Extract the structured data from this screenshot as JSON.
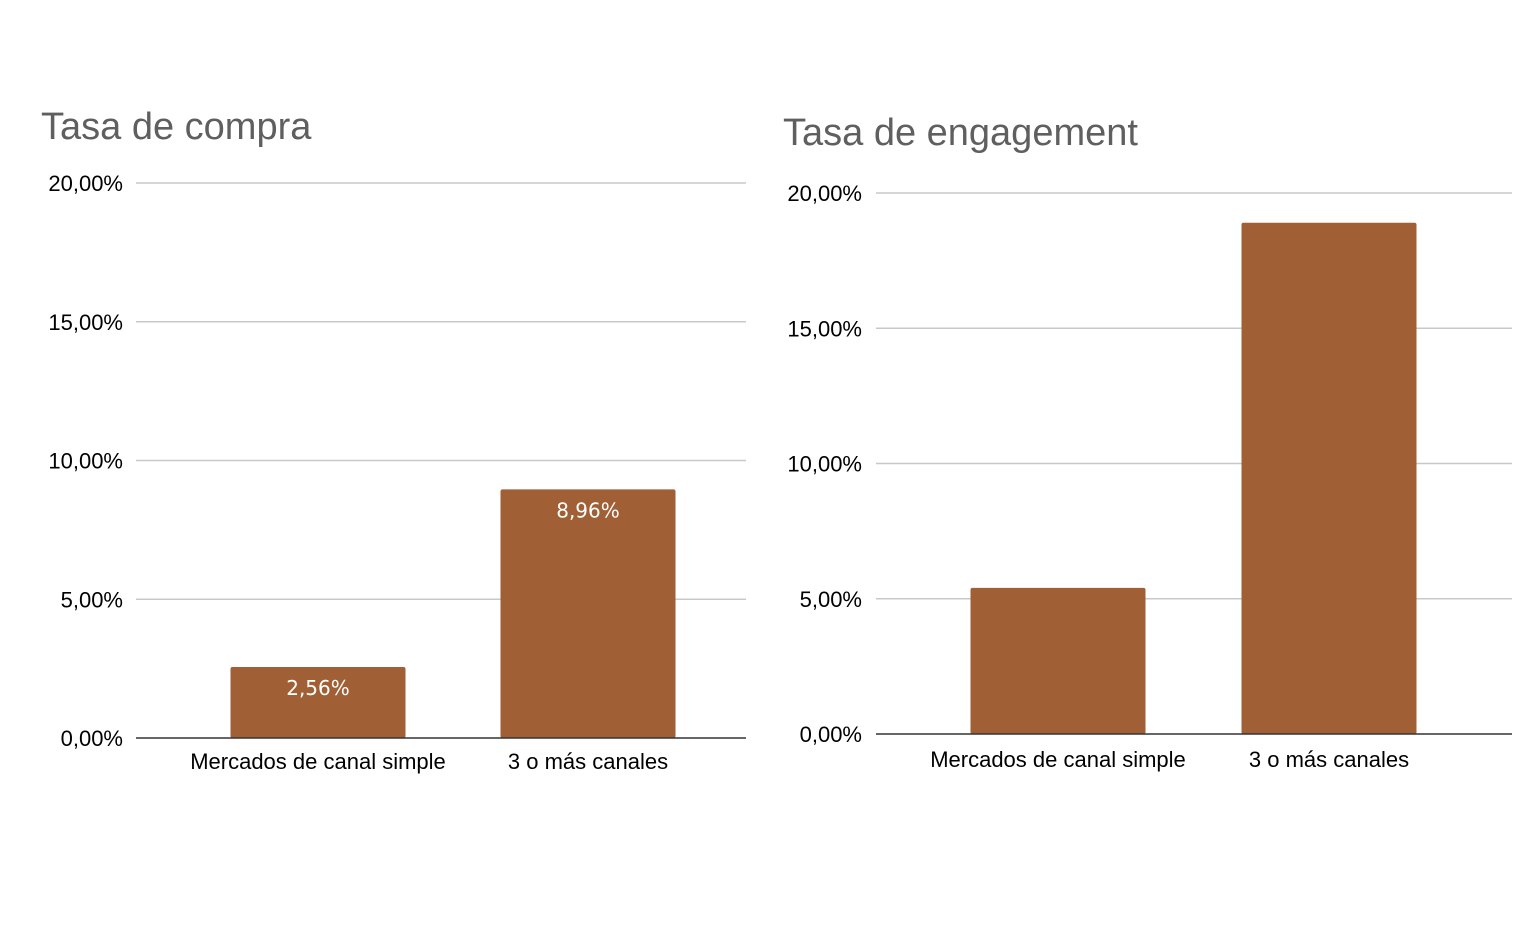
{
  "chart_data": [
    {
      "type": "bar",
      "title": "Tasa de compra",
      "categories": [
        "Mercados de canal simple",
        "3 o más canales"
      ],
      "values": [
        2.56,
        8.96
      ],
      "data_labels": [
        "2,56%",
        "8,96%"
      ],
      "ylim": [
        0,
        20
      ],
      "yticks": [
        0,
        5,
        10,
        15,
        20
      ],
      "ytick_labels": [
        "0,00%",
        "5,00%",
        "10,00%",
        "15,00%",
        "20,00%"
      ],
      "grid": true,
      "legend": "none",
      "bar_color": "#a05f34"
    },
    {
      "type": "bar",
      "title": "Tasa de engagement",
      "categories": [
        "Mercados de canal simple",
        "3 o más canales"
      ],
      "values": [
        5.4,
        18.9
      ],
      "data_labels": [
        "",
        ""
      ],
      "ylim": [
        0,
        20
      ],
      "yticks": [
        0,
        5,
        10,
        15,
        20
      ],
      "ytick_labels": [
        "0,00%",
        "5,00%",
        "10,00%",
        "15,00%",
        "20,00%"
      ],
      "grid": true,
      "legend": "none",
      "bar_color": "#a05f34"
    }
  ]
}
